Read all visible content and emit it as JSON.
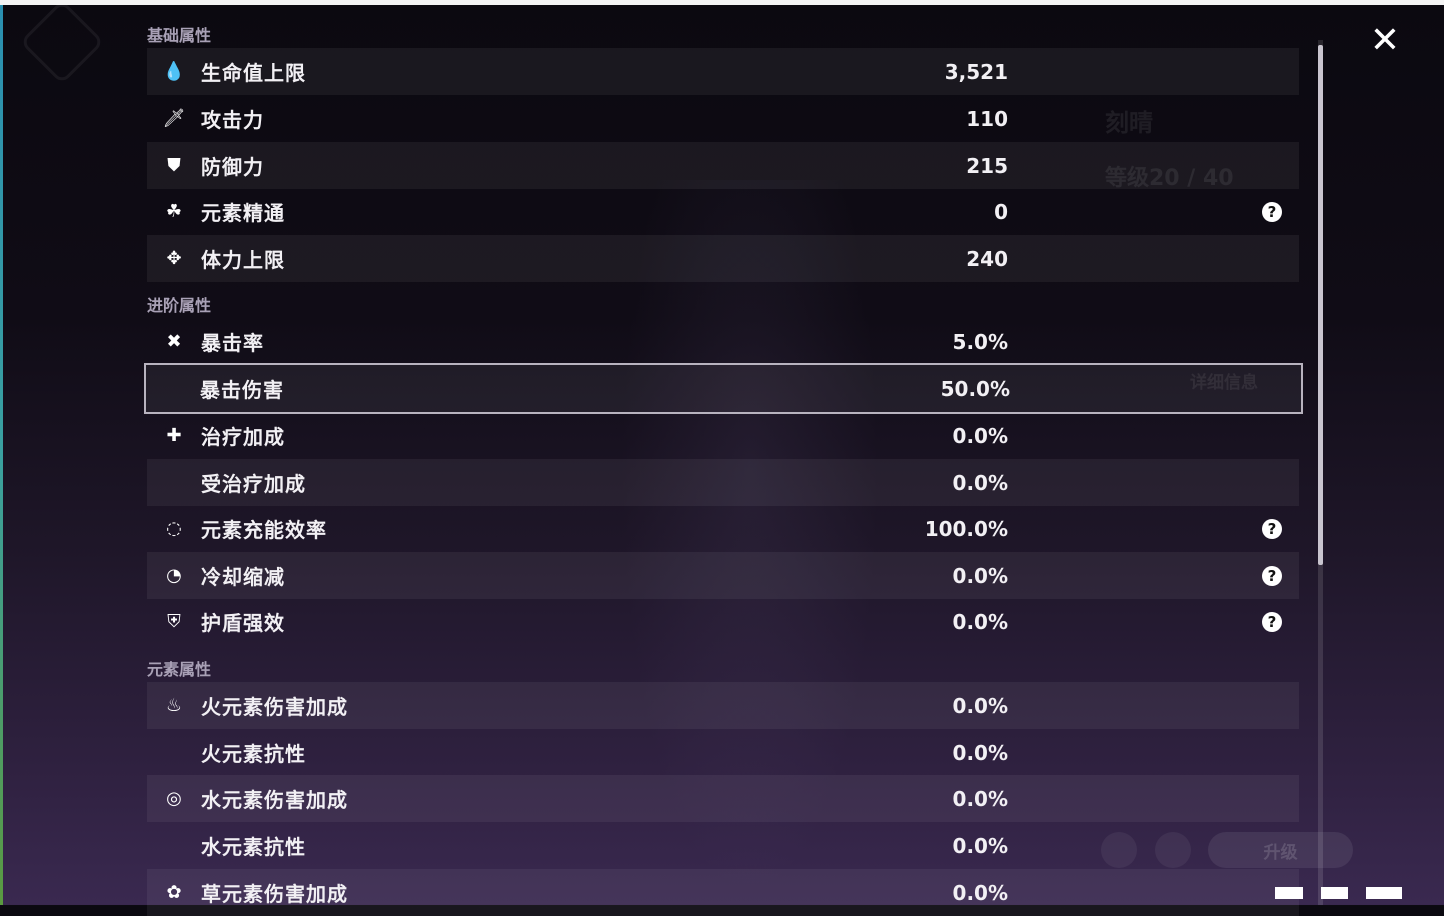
{
  "background": {
    "character_name": "刻晴",
    "level": "等级20 / 40",
    "details_button": "详细信息",
    "upgrade_button": "升级"
  },
  "close_icon": "close-icon",
  "sections": [
    {
      "title": "基础属性",
      "rows": [
        {
          "label": "生命值上限",
          "value": "3,521",
          "icon": "hp-drop-icon",
          "glyph": "💧",
          "help": false
        },
        {
          "label": "攻击力",
          "value": "110",
          "icon": "sword-icon",
          "glyph": "🗡",
          "help": false
        },
        {
          "label": "防御力",
          "value": "215",
          "icon": "shield-icon",
          "glyph": "⛊",
          "help": false
        },
        {
          "label": "元素精通",
          "value": "0",
          "icon": "elemental-mastery-icon",
          "glyph": "☘",
          "help": true
        },
        {
          "label": "体力上限",
          "value": "240",
          "icon": "stamina-icon",
          "glyph": "✥",
          "help": false
        }
      ]
    },
    {
      "title": "进阶属性",
      "rows": [
        {
          "label": "暴击率",
          "value": "5.0%",
          "icon": "crit-rate-icon",
          "glyph": "✖",
          "help": false
        },
        {
          "label": "暴击伤害",
          "value": "50.0%",
          "icon": "",
          "glyph": "",
          "help": false,
          "selected": true
        },
        {
          "label": "治疗加成",
          "value": "0.0%",
          "icon": "healing-cross-icon",
          "glyph": "✚",
          "help": false
        },
        {
          "label": "受治疗加成",
          "value": "0.0%",
          "icon": "",
          "glyph": "",
          "help": false
        },
        {
          "label": "元素充能效率",
          "value": "100.0%",
          "icon": "energy-recharge-icon",
          "glyph": "◌",
          "help": true
        },
        {
          "label": "冷却缩减",
          "value": "0.0%",
          "icon": "cooldown-icon",
          "glyph": "◔",
          "help": true
        },
        {
          "label": "护盾强效",
          "value": "0.0%",
          "icon": "shield-bolt-icon",
          "glyph": "⛨",
          "help": true
        }
      ]
    },
    {
      "title": "元素属性",
      "rows": [
        {
          "label": "火元素伤害加成",
          "value": "0.0%",
          "icon": "pyro-icon",
          "glyph": "♨",
          "help": false
        },
        {
          "label": "火元素抗性",
          "value": "0.0%",
          "icon": "",
          "glyph": "",
          "help": false
        },
        {
          "label": "水元素伤害加成",
          "value": "0.0%",
          "icon": "hydro-icon",
          "glyph": "◎",
          "help": false
        },
        {
          "label": "水元素抗性",
          "value": "0.0%",
          "icon": "",
          "glyph": "",
          "help": false
        },
        {
          "label": "草元素伤害加成",
          "value": "0.0%",
          "icon": "dendro-icon",
          "glyph": "✿",
          "help": false
        }
      ]
    }
  ],
  "help_glyph": "?"
}
